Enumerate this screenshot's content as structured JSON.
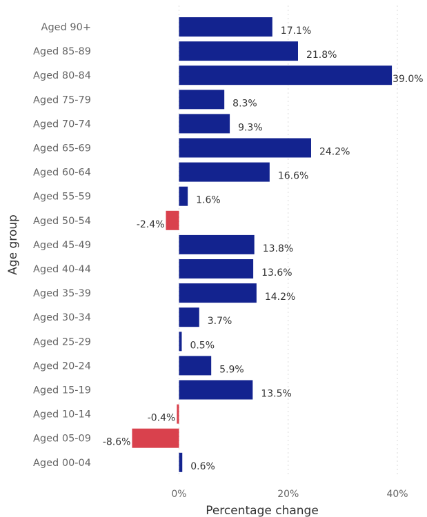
{
  "chart_data": {
    "type": "bar",
    "orientation": "horizontal",
    "title": "",
    "xlabel": "Percentage change",
    "ylabel": "Age group",
    "xlim": [
      -10,
      40
    ],
    "xticks": [
      0,
      20,
      40
    ],
    "xtick_labels": [
      "0%",
      "20%",
      "40%"
    ],
    "grid": true,
    "legend": "none",
    "colors": {
      "positive": "#13238f",
      "negative": "#d9414d",
      "grid": "#d9d9d9",
      "text": "#333333",
      "axis_text": "#666666"
    },
    "categories": [
      "Aged 90+",
      "Aged 85-89",
      "Aged 80-84",
      "Aged 75-79",
      "Aged 70-74",
      "Aged 65-69",
      "Aged 60-64",
      "Aged 55-59",
      "Aged 50-54",
      "Aged 45-49",
      "Aged 40-44",
      "Aged 35-39",
      "Aged 30-34",
      "Aged 25-29",
      "Aged 20-24",
      "Aged 15-19",
      "Aged 10-14",
      "Aged 05-09",
      "Aged 00-04"
    ],
    "values": [
      17.1,
      21.8,
      39.0,
      8.3,
      9.3,
      24.2,
      16.6,
      1.6,
      -2.4,
      13.8,
      13.6,
      14.2,
      3.7,
      0.5,
      5.9,
      13.5,
      -0.4,
      -8.6,
      0.6
    ],
    "data_labels": [
      "17.1%",
      "21.8%",
      "39.0%",
      "8.3%",
      "9.3%",
      "24.2%",
      "16.6%",
      "1.6%",
      "-2.4%",
      "13.8%",
      "13.6%",
      "14.2%",
      "3.7%",
      "0.5%",
      "5.9%",
      "13.5%",
      "-0.4%",
      "-8.6%",
      "0.6%"
    ]
  }
}
